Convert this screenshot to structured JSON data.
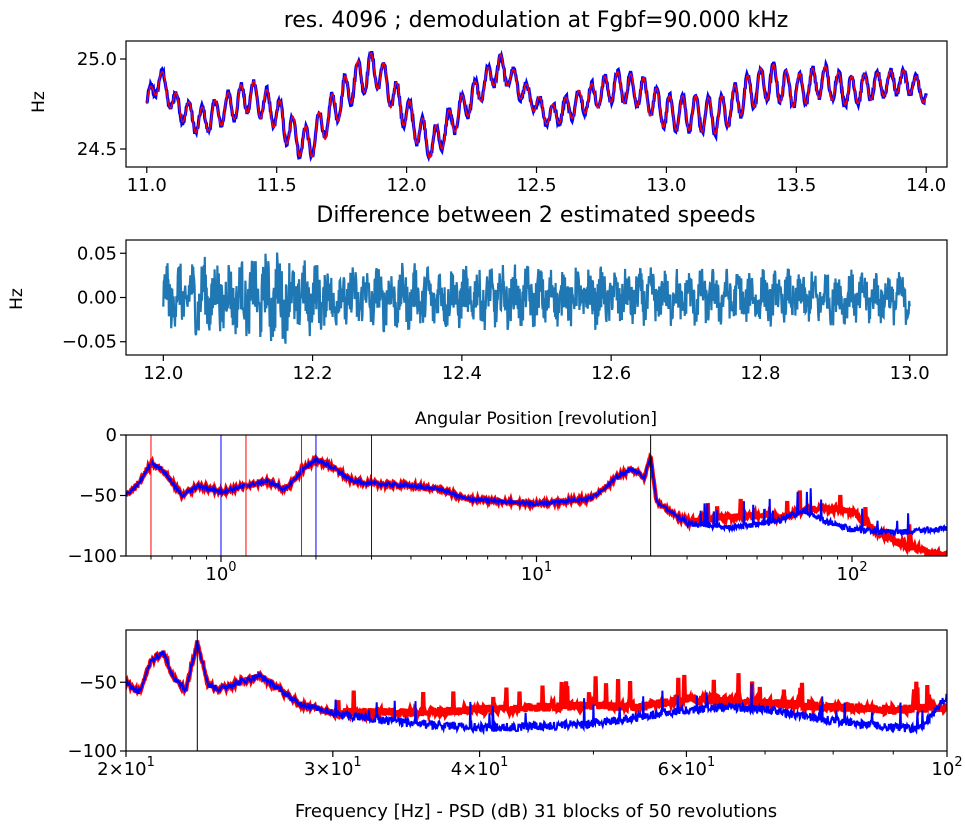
{
  "chart_data": [
    {
      "type": "line",
      "title": "res. 4096 ; demodulation at Fgbf=90.000 kHz",
      "ylabel": "Hz",
      "xlabel": "",
      "xlim": [
        10.92,
        14.08
      ],
      "ylim": [
        24.4,
        25.1
      ],
      "xticks": [
        11.0,
        11.5,
        12.0,
        12.5,
        13.0,
        13.5,
        14.0
      ],
      "xtick_labels": [
        "11.0",
        "11.5",
        "12.0",
        "12.5",
        "13.0",
        "13.5",
        "14.0"
      ],
      "yticks": [
        24.5,
        25.0
      ],
      "ytick_labels": [
        "24.5",
        "25.0"
      ],
      "grid": false,
      "colors": [
        "#ff0000",
        "#0000ff"
      ],
      "envelope": {
        "x": [
          11.0,
          11.05,
          11.1,
          11.2,
          11.3,
          11.4,
          11.5,
          11.55,
          11.62,
          11.7,
          11.8,
          11.88,
          11.95,
          12.05,
          12.1,
          12.2,
          12.3,
          12.36,
          12.45,
          12.55,
          12.7,
          12.8,
          12.9,
          13.0,
          13.1,
          13.2,
          13.3,
          13.4,
          13.5,
          13.6,
          13.7,
          13.8,
          13.9,
          13.95,
          14.0
        ],
        "y": [
          24.75,
          24.9,
          24.76,
          24.65,
          24.72,
          24.8,
          24.7,
          24.6,
          24.52,
          24.68,
          24.88,
          24.95,
          24.8,
          24.6,
          24.52,
          24.7,
          24.86,
          24.96,
          24.82,
          24.68,
          24.78,
          24.85,
          24.82,
          24.7,
          24.7,
          24.68,
          24.8,
          24.88,
          24.82,
          24.88,
          24.82,
          24.85,
          24.88,
          24.86,
          24.8
        ]
      },
      "oscillation": {
        "cycles_per_rev": 20,
        "amplitude": 0.1
      },
      "series": [
        {
          "name": "",
          "color": "#ff0000"
        },
        {
          "name": "",
          "color": "#0000ff"
        }
      ]
    },
    {
      "type": "line",
      "title": "Difference between 2 estimated speeds",
      "ylabel": "Hz",
      "xlabel": "Angular Position [revolution]",
      "xlim": [
        11.95,
        13.05
      ],
      "ylim": [
        -0.065,
        0.065
      ],
      "xticks": [
        12.0,
        12.2,
        12.4,
        12.6,
        12.8,
        13.0
      ],
      "xtick_labels": [
        "12.0",
        "12.2",
        "12.4",
        "12.6",
        "12.8",
        "13.0"
      ],
      "yticks": [
        -0.05,
        0.0,
        0.05
      ],
      "ytick_labels": [
        "−0.05",
        "0.00",
        "0.05"
      ],
      "grid": false,
      "colors": [
        "#1f77b4"
      ],
      "amplitude_envelope": {
        "x": [
          12.0,
          12.05,
          12.1,
          12.15,
          12.2,
          12.3,
          12.5,
          12.7,
          12.9,
          13.0
        ],
        "y": [
          0.04,
          0.05,
          0.045,
          0.058,
          0.045,
          0.04,
          0.038,
          0.035,
          0.034,
          0.032
        ]
      },
      "series": [
        {
          "name": "",
          "color": "#1f77b4"
        }
      ]
    },
    {
      "type": "line",
      "title": "",
      "ylabel": "",
      "xlabel": "",
      "xscale": "log",
      "xlim": [
        0.5,
        200
      ],
      "ylim": [
        -100,
        0
      ],
      "xticks": [
        1,
        10,
        100
      ],
      "xtick_labels": [
        {
          "base": "10",
          "exp": "0"
        },
        {
          "base": "10",
          "exp": "1"
        },
        {
          "base": "10",
          "exp": "2"
        }
      ],
      "yticks": [
        -100,
        -50,
        0
      ],
      "ytick_labels": [
        "−100",
        "−50",
        "0"
      ],
      "grid": false,
      "colors": [
        "#ff0000",
        "#0000ff"
      ],
      "vlines": [
        {
          "x": 0.6,
          "color": "#ff0000"
        },
        {
          "x": 1.2,
          "color": "#ff0000"
        },
        {
          "x": 1.8,
          "color": "#ff0000"
        },
        {
          "x": 1.0,
          "color": "#0000ff"
        },
        {
          "x": 2.0,
          "color": "#0000ff"
        },
        {
          "x": 3.0,
          "color": "#0000ff"
        },
        {
          "x": 23.0,
          "color": "#000000"
        }
      ],
      "shared_envelope": {
        "x": [
          0.5,
          0.55,
          0.6,
          0.65,
          0.75,
          0.85,
          1.0,
          1.2,
          1.4,
          1.6,
          1.8,
          2.0,
          2.3,
          2.6,
          3.0,
          4.0,
          5.0,
          6.0,
          8.0,
          10.0,
          12.0,
          15.0,
          18.0,
          20.0,
          22.0,
          23.0,
          24.0,
          27.0,
          30.0
        ],
        "y": [
          -50,
          -40,
          -23,
          -28,
          -50,
          -42,
          -47,
          -42,
          -38,
          -45,
          -30,
          -20,
          -28,
          -38,
          -40,
          -42,
          -45,
          -53,
          -55,
          -57,
          -55,
          -52,
          -35,
          -28,
          -35,
          -18,
          -55,
          -65,
          -72
        ]
      },
      "series": [
        {
          "name": "",
          "color": "#ff0000",
          "tail": {
            "x": [
              30,
              40,
              50,
              60,
              70,
              80,
              100,
              120,
              150,
              200
            ],
            "y": [
              -72,
              -68,
              -66,
              -68,
              -62,
              -60,
              -63,
              -80,
              -92,
              -100
            ]
          }
        },
        {
          "name": "",
          "color": "#0000ff",
          "tail": {
            "x": [
              30,
              40,
              50,
              60,
              70,
              80,
              100,
              120,
              150,
              200
            ],
            "y": [
              -73,
              -76,
              -74,
              -70,
              -62,
              -70,
              -78,
              -80,
              -80,
              -77
            ]
          }
        }
      ]
    },
    {
      "type": "line",
      "title": "",
      "ylabel": "",
      "xlabel": "Frequency [Hz] - PSD (dB) 31 blocks of 50 revolutions",
      "xscale": "log",
      "xlim": [
        20,
        100
      ],
      "ylim": [
        -100,
        -12
      ],
      "xticks": [
        20,
        30,
        40,
        60,
        100
      ],
      "xtick_labels": [
        {
          "mant": "2",
          "base": "10",
          "exp": "1"
        },
        {
          "mant": "3",
          "base": "10",
          "exp": "1"
        },
        {
          "mant": "4",
          "base": "10",
          "exp": "1"
        },
        {
          "mant": "6",
          "base": "10",
          "exp": "1"
        },
        {
          "mant": "",
          "base": "10",
          "exp": "2"
        }
      ],
      "yticks": [
        -100,
        -50
      ],
      "ytick_labels": [
        "−100",
        "−50"
      ],
      "grid": false,
      "colors": [
        "#ff0000",
        "#0000ff"
      ],
      "vlines": [
        {
          "x": 23.0,
          "color": "#000000"
        }
      ],
      "shared_envelope": {
        "x": [
          20,
          20.5,
          21,
          21.5,
          22,
          22.5,
          23,
          23.5,
          24,
          25,
          26,
          27,
          28,
          30
        ],
        "y": [
          -50,
          -58,
          -35,
          -28,
          -48,
          -55,
          -20,
          -52,
          -55,
          -50,
          -45,
          -55,
          -65,
          -72
        ]
      },
      "series": [
        {
          "name": "",
          "color": "#ff0000",
          "tail": {
            "x": [
              30,
              35,
              40,
              45,
              50,
              55,
              60,
              70,
              80,
              90,
              100
            ],
            "y": [
              -72,
              -72,
              -70,
              -68,
              -67,
              -68,
              -62,
              -65,
              -68,
              -70,
              -68
            ]
          }
        },
        {
          "name": "",
          "color": "#0000ff",
          "tail": {
            "x": [
              30,
              35,
              40,
              45,
              50,
              55,
              60,
              65,
              70,
              80,
              90,
              95,
              100
            ],
            "y": [
              -73,
              -80,
              -83,
              -82,
              -80,
              -75,
              -70,
              -68,
              -70,
              -78,
              -83,
              -84,
              -60
            ]
          }
        }
      ]
    }
  ]
}
